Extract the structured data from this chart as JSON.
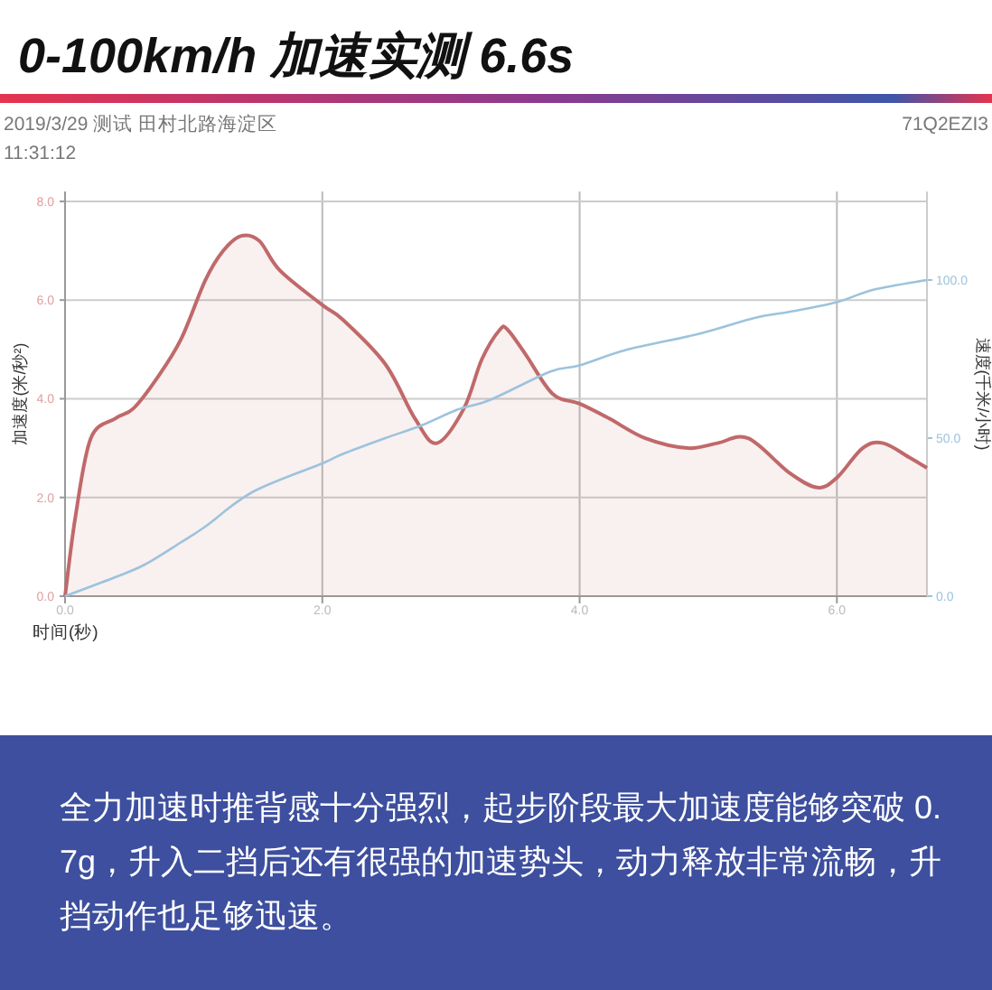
{
  "chart_data": {
    "type": "line",
    "title": "0-100km/h 加速实测 6.6s",
    "annotations": [
      "2019/3/29 测试 田村北路海淀区",
      "11:31:12",
      "71Q2EZI3",
      "全力加速时推背感十分强烈，起步阶段最大加速度能够突破 0.7g，升入二挡后还有很强的加速势头，动力释放非常流畅，升挡动作也足够迅速。"
    ],
    "xlabel": "时间(秒)",
    "ylabel": "加速度(米/秒²)",
    "y2label": "速度(千米/小时)",
    "xlim": [
      0,
      6.7
    ],
    "xticks": [
      {
        "value": 0,
        "label": "0.0"
      },
      {
        "value": 2,
        "label": "2.0"
      },
      {
        "value": 4,
        "label": "4.0"
      },
      {
        "value": 6,
        "label": "6.0"
      }
    ],
    "ylim": [
      0,
      8.2
    ],
    "yticks": [
      {
        "value": 0,
        "label": "0.0"
      },
      {
        "value": 2,
        "label": "2.0"
      },
      {
        "value": 4,
        "label": "4.0"
      },
      {
        "value": 6,
        "label": "6.0"
      },
      {
        "value": 8,
        "label": "8.0"
      }
    ],
    "y2lim": [
      0,
      128
    ],
    "y2ticks": [
      {
        "value": 0,
        "label": "0.0"
      },
      {
        "value": 50,
        "label": "50.0"
      },
      {
        "value": 100,
        "label": "100.0"
      }
    ],
    "grid": true,
    "series": [
      {
        "type": "area",
        "color": "#c0696a",
        "x": [
          0,
          0.08,
          0.2,
          0.39,
          0.53,
          0.71,
          0.9,
          1.09,
          1.23,
          1.37,
          1.51,
          1.67,
          2.0,
          2.16,
          2.49,
          2.72,
          2.89,
          3.1,
          3.24,
          3.38,
          3.44,
          3.58,
          3.79,
          4.0,
          4.23,
          4.51,
          4.84,
          5.07,
          5.31,
          5.63,
          5.85,
          6.0,
          6.2,
          6.36,
          6.57,
          6.7
        ],
        "values": [
          0,
          1.6,
          3.2,
          3.6,
          3.8,
          4.4,
          5.2,
          6.4,
          7.0,
          7.3,
          7.2,
          6.6,
          5.9,
          5.6,
          4.7,
          3.6,
          3.1,
          3.8,
          4.8,
          5.4,
          5.4,
          4.9,
          4.1,
          3.9,
          3.6,
          3.2,
          3.0,
          3.1,
          3.2,
          2.5,
          2.2,
          2.4,
          3.0,
          3.1,
          2.8,
          2.6
        ]
      },
      {
        "axis": "y2",
        "color": "#9cc3dc",
        "x": [
          0,
          0.39,
          0.62,
          0.9,
          1.09,
          1.46,
          2.0,
          2.16,
          2.49,
          2.77,
          3.05,
          3.3,
          3.77,
          4.0,
          4.37,
          4.93,
          5.36,
          5.64,
          6.0,
          6.29,
          6.7
        ],
        "values": [
          0,
          6,
          10,
          17,
          22,
          33,
          42,
          45,
          50,
          54,
          59,
          62,
          71,
          73,
          78,
          83,
          88,
          90,
          93,
          97,
          100
        ]
      }
    ]
  }
}
